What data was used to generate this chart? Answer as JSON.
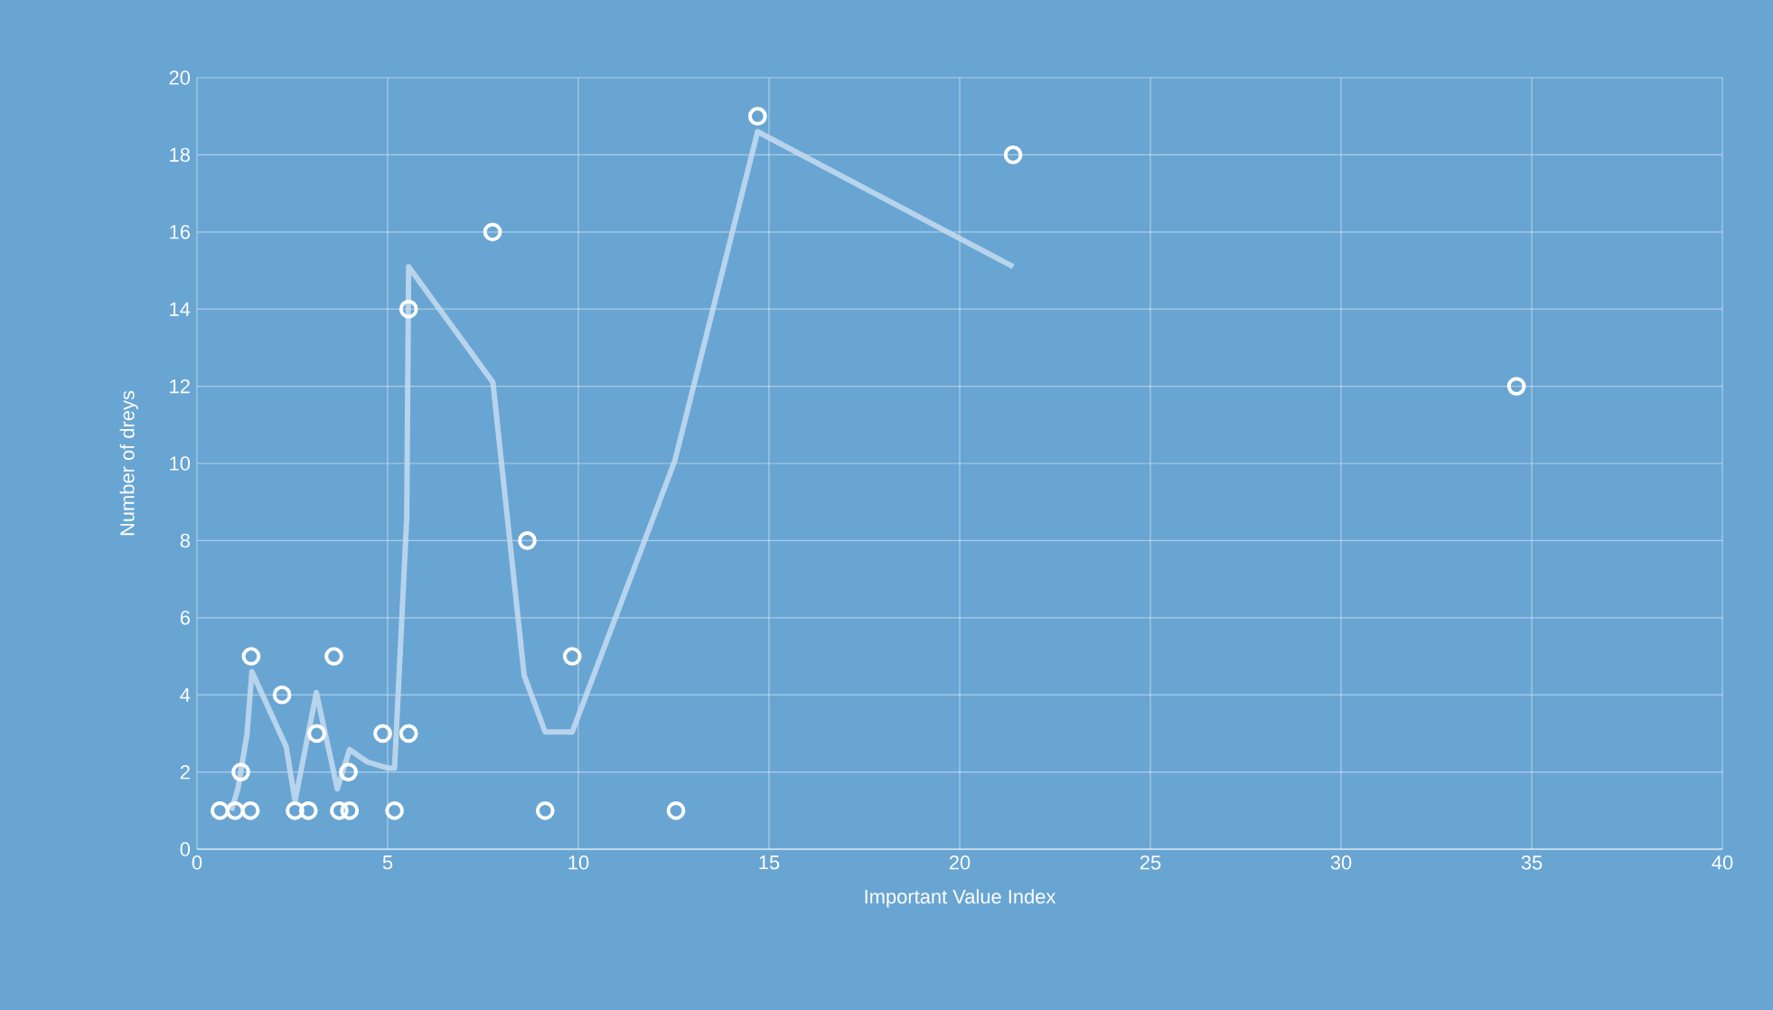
{
  "chart_data": {
    "type": "scatter",
    "xlabel": "Important Value Index",
    "ylabel": "Number of dreys",
    "xlim": [
      0,
      40
    ],
    "ylim": [
      0,
      20
    ],
    "xticks": [
      0,
      5,
      10,
      15,
      20,
      25,
      30,
      35,
      40
    ],
    "yticks": [
      0,
      2,
      4,
      6,
      8,
      10,
      12,
      14,
      16,
      18,
      20
    ],
    "grid": true,
    "marker": "circle",
    "series": [
      {
        "color": "#ffffff",
        "x": [
          0.6,
          1.0,
          1.4,
          1.42,
          1.15,
          2.23,
          2.57,
          2.92,
          3.14,
          3.59,
          3.73,
          4.0,
          3.97,
          4.87,
          5.18,
          5.55,
          9.13,
          9.84,
          5.55,
          8.66,
          12.56,
          7.75,
          14.7,
          21.4,
          34.6
        ],
        "values": [
          1,
          1,
          1,
          5,
          2,
          4,
          1,
          1,
          3,
          5,
          1,
          1,
          2,
          3,
          1,
          3,
          1,
          5,
          14,
          8,
          1,
          16,
          19,
          18,
          12
        ]
      },
      {
        "type": "line",
        "marker": "none",
        "color": "#c6dcf0",
        "x": [
          0.9,
          1.07,
          1.31,
          1.44,
          2.34,
          2.57,
          3.13,
          3.68,
          4.0,
          4.47,
          5.02,
          5.18,
          5.5,
          5.55,
          7.76,
          8.58,
          9.13,
          9.84,
          12.53,
          14.7,
          21.4
        ],
        "values": [
          1.0,
          1.56,
          2.97,
          4.6,
          2.65,
          1.25,
          4.06,
          1.56,
          2.58,
          2.26,
          2.1,
          2.1,
          8.6,
          15.1,
          12.1,
          4.5,
          3.04,
          3.04,
          10.07,
          18.6,
          15.1
        ]
      }
    ]
  }
}
